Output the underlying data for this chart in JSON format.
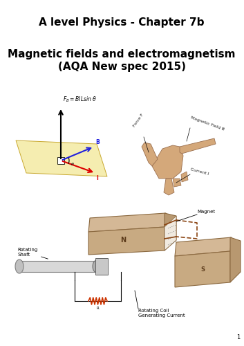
{
  "title_line1": "A level Physics - Chapter 7b",
  "title_line2": "Magnetic fields and electromagnetism",
  "title_line3": "(AQA New spec 2015)",
  "background_color": "#ffffff",
  "title1_fontsize": 11,
  "title2_fontsize": 11,
  "title3_fontsize": 11,
  "page_number": "1",
  "fig_width": 3.53,
  "fig_height": 5.0,
  "dpi": 100,
  "plane_color": "#F5EDB0",
  "plane_edge": "#C8A830",
  "hand_color": "#D4A87A",
  "hand_edge": "#9B7050",
  "magnet_color": "#C8AA82",
  "magnet_edge": "#8B6940",
  "coil_color": "#E8DDD0",
  "shaft_color": "#D8D8D8",
  "wire_color": "#8B4513",
  "resistor_color": "#CC3300",
  "label_color": "#222222",
  "diagram_label_fontsize": 4.5,
  "formula_fontsize": 5.5
}
